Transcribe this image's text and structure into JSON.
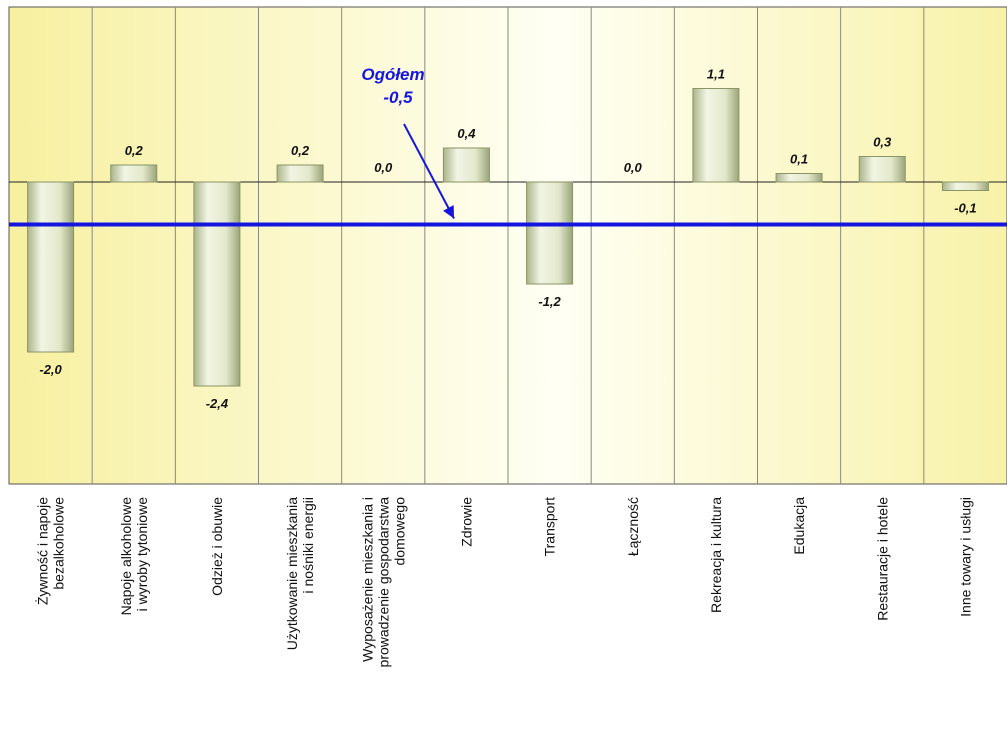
{
  "chart_data": {
    "type": "bar",
    "categories": [
      "Żywność i napoje bezalkoholowe",
      "Napoje alkoholowe i wyroby tytoniowe",
      "Odzież i obuwie",
      "Użytkowanie mieszkania i nośniki energii",
      "Wyposażenie mieszkania i prowadzenie gospodarstwa domowego",
      "Zdrowie",
      "Transport",
      "Łączność",
      "Rekreacja i kultura",
      "Edukacja",
      "Restauracje i hotele",
      "Inne towary i usługi"
    ],
    "category_lines": [
      [
        "Żywność i napoje",
        "bezalkoholowe"
      ],
      [
        "Napoje alkoholowe",
        "i wyroby tytoniowe"
      ],
      [
        "Odzież i obuwie"
      ],
      [
        "Użytkowanie mieszkania",
        "i nośniki energii"
      ],
      [
        "Wyposażenie mieszkania i",
        "prowadzenie gospodarstwa",
        "domowego"
      ],
      [
        "Zdrowie"
      ],
      [
        "Transport"
      ],
      [
        "Łączność"
      ],
      [
        "Rekreacja i kultura"
      ],
      [
        "Edukacja"
      ],
      [
        "Restauracje i hotele"
      ],
      [
        "Inne towary i usługi"
      ]
    ],
    "values": [
      -2.0,
      0.2,
      -2.4,
      0.2,
      0.0,
      0.4,
      -1.2,
      0.0,
      1.1,
      0.1,
      0.3,
      -0.1
    ],
    "value_labels": [
      "-2,0",
      "0,2",
      "-2,4",
      "0,2",
      "0,0",
      "0,4",
      "-1,2",
      "0,0",
      "1,1",
      "0,1",
      "0,3",
      "-0,1"
    ],
    "reference_line": {
      "value": -0.5,
      "label_line1": "Ogółem",
      "label_line2": "-0,5"
    },
    "ylim": [
      -2.9,
      1.7
    ],
    "title": "",
    "xlabel": "",
    "ylabel": "",
    "colors": {
      "bar_fill": "#e6ebcf",
      "bar_edge": "#8a9466",
      "reference": "#1515e0",
      "plot_bg_center": "#fffff0",
      "plot_bg_edge": "#f7f0a0"
    }
  }
}
